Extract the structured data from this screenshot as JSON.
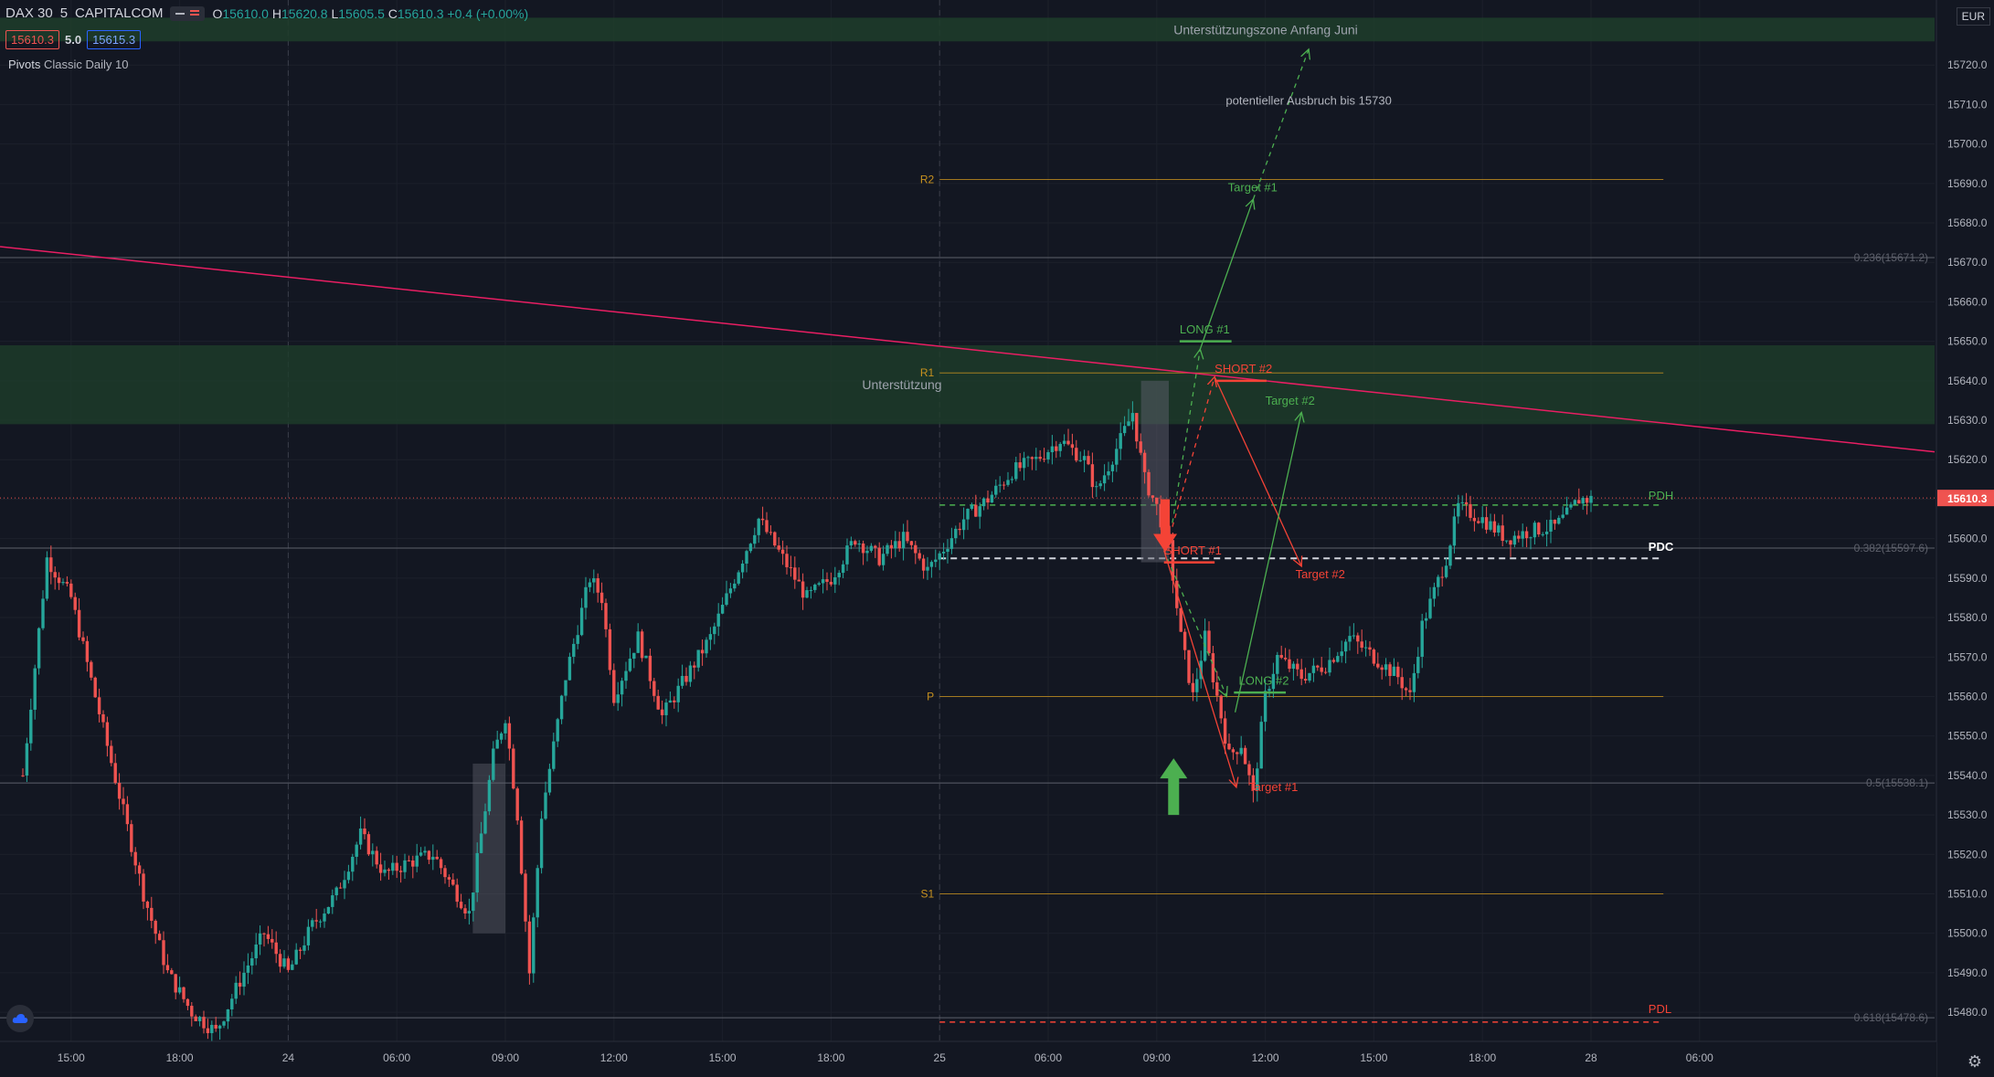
{
  "legend": {
    "symbol": "DAX 30",
    "interval": "5",
    "exchange": "CAPITALCOM",
    "o_label": "O",
    "o": "15610.0",
    "h_label": "H",
    "h": "15620.8",
    "l_label": "L",
    "l": "15605.5",
    "c_label": "C",
    "c": "15610.3",
    "change": "+0.4 (+0.00%)"
  },
  "tags": {
    "bid": "15610.3",
    "spread": "5.0",
    "ask": "15615.3"
  },
  "indicator": {
    "name": "Pivots",
    "params": "Classic Daily 10"
  },
  "currency": "EUR",
  "colors": {
    "bg": "#131722",
    "up": "#26a69a",
    "down": "#ef5350",
    "green": "#4caf50",
    "red": "#f44336",
    "orange": "#c7911f",
    "zone": "#1e3d2a",
    "trend": "#e91e63"
  },
  "icons": {
    "logo": "tradingview-cloud-icon",
    "settings": "gear-icon"
  },
  "chart_data": {
    "type": "candlestick",
    "ylim": [
      15474,
      15730
    ],
    "y_ticks": [
      "15720.0",
      "15710.0",
      "15700.0",
      "15690.0",
      "15680.0",
      "15670.0",
      "15660.0",
      "15650.0",
      "15640.0",
      "15630.0",
      "15620.0",
      "15610.0",
      "15600.0",
      "15590.0",
      "15580.0",
      "15570.0",
      "15560.0",
      "15550.0",
      "15540.0",
      "15530.0",
      "15520.0",
      "15510.0",
      "15500.0",
      "15490.0",
      "15480.0"
    ],
    "x_ticks": [
      {
        "label": "15:00",
        "slot": 4
      },
      {
        "label": "18:00",
        "slot": 13
      },
      {
        "label": "24",
        "slot": 22
      },
      {
        "label": "06:00",
        "slot": 31
      },
      {
        "label": "09:00",
        "slot": 40
      },
      {
        "label": "12:00",
        "slot": 49
      },
      {
        "label": "15:00",
        "slot": 58
      },
      {
        "label": "18:00",
        "slot": 67
      },
      {
        "label": "25",
        "slot": 76
      },
      {
        "label": "06:00",
        "slot": 85
      },
      {
        "label": "09:00",
        "slot": 94
      },
      {
        "label": "12:00",
        "slot": 103
      },
      {
        "label": "15:00",
        "slot": 112
      },
      {
        "label": "18:00",
        "slot": 121
      },
      {
        "label": "28",
        "slot": 130
      },
      {
        "label": "06:00",
        "slot": 139
      }
    ],
    "current_price": "15610.3",
    "pivots": [
      {
        "name": "R2",
        "value": 15691
      },
      {
        "name": "R1",
        "value": 15642
      },
      {
        "name": "P",
        "value": 15560
      },
      {
        "name": "S1",
        "value": 15510
      }
    ],
    "fib": [
      {
        "label": "0.236(15671.2)",
        "value": 15671.2
      },
      {
        "label": "0.382(15597.6)",
        "value": 15597.6
      },
      {
        "label": "0.5(15538.1)",
        "value": 15538.1
      },
      {
        "label": "0.618(15478.6)",
        "value": 15478.6
      }
    ],
    "levels": [
      {
        "label": "PDH",
        "value": 15608.5
      },
      {
        "label": "PDC",
        "value": 15595
      },
      {
        "label": "PDL",
        "value": 15477.5
      }
    ],
    "zones": [
      {
        "label": "Unterstützungszone Anfang Juni",
        "from": 15726,
        "to": 15732
      },
      {
        "label": "Unterstützung",
        "from": 15629,
        "to": 15649
      }
    ],
    "annotations": [
      {
        "text": "potentieller Ausbruch bis 15730",
        "color": "#b2b5be"
      },
      {
        "text": "Target #1",
        "color": "#4caf50"
      },
      {
        "text": "LONG #1",
        "color": "#4caf50"
      },
      {
        "text": "SHORT #2",
        "color": "#f44336"
      },
      {
        "text": "Target #2",
        "color": "#4caf50"
      },
      {
        "text": "SHORT #1",
        "color": "#f44336"
      },
      {
        "text": "Target #2",
        "color": "#f44336"
      },
      {
        "text": "LONG #2",
        "color": "#4caf50"
      },
      {
        "text": "Target #1",
        "color": "#f44336"
      }
    ],
    "anchors": [
      {
        "slot": 0,
        "price": 15540
      },
      {
        "slot": 2,
        "price": 15595
      },
      {
        "slot": 4,
        "price": 15585
      },
      {
        "slot": 6,
        "price": 15560
      },
      {
        "slot": 8,
        "price": 15535
      },
      {
        "slot": 10,
        "price": 15510
      },
      {
        "slot": 12,
        "price": 15490
      },
      {
        "slot": 14,
        "price": 15480
      },
      {
        "slot": 16,
        "price": 15475
      },
      {
        "slot": 18,
        "price": 15488
      },
      {
        "slot": 20,
        "price": 15500
      },
      {
        "slot": 22,
        "price": 15490
      },
      {
        "slot": 24,
        "price": 15502
      },
      {
        "slot": 26,
        "price": 15510
      },
      {
        "slot": 28,
        "price": 15525
      },
      {
        "slot": 30,
        "price": 15515
      },
      {
        "slot": 32,
        "price": 15518
      },
      {
        "slot": 34,
        "price": 15520
      },
      {
        "slot": 36,
        "price": 15510
      },
      {
        "slot": 37,
        "price": 15505
      },
      {
        "slot": 39,
        "price": 15545
      },
      {
        "slot": 40,
        "price": 15555
      },
      {
        "slot": 41,
        "price": 15530
      },
      {
        "slot": 42,
        "price": 15490
      },
      {
        "slot": 43,
        "price": 15530
      },
      {
        "slot": 45,
        "price": 15565
      },
      {
        "slot": 47,
        "price": 15590
      },
      {
        "slot": 48,
        "price": 15585
      },
      {
        "slot": 49,
        "price": 15560
      },
      {
        "slot": 51,
        "price": 15575
      },
      {
        "slot": 53,
        "price": 15555
      },
      {
        "slot": 55,
        "price": 15565
      },
      {
        "slot": 57,
        "price": 15575
      },
      {
        "slot": 59,
        "price": 15590
      },
      {
        "slot": 61,
        "price": 15605
      },
      {
        "slot": 63,
        "price": 15595
      },
      {
        "slot": 65,
        "price": 15585
      },
      {
        "slot": 67,
        "price": 15590
      },
      {
        "slot": 69,
        "price": 15600
      },
      {
        "slot": 71,
        "price": 15595
      },
      {
        "slot": 73,
        "price": 15600
      },
      {
        "slot": 75,
        "price": 15592
      },
      {
        "slot": 76,
        "price": 15596
      },
      {
        "slot": 78,
        "price": 15605
      },
      {
        "slot": 80,
        "price": 15610
      },
      {
        "slot": 82,
        "price": 15617
      },
      {
        "slot": 84,
        "price": 15620
      },
      {
        "slot": 86,
        "price": 15625
      },
      {
        "slot": 88,
        "price": 15620
      },
      {
        "slot": 89,
        "price": 15612
      },
      {
        "slot": 91,
        "price": 15625
      },
      {
        "slot": 92,
        "price": 15632
      },
      {
        "slot": 93,
        "price": 15615
      },
      {
        "slot": 94,
        "price": 15608
      },
      {
        "slot": 95,
        "price": 15598
      },
      {
        "slot": 96,
        "price": 15575
      },
      {
        "slot": 97,
        "price": 15560
      },
      {
        "slot": 98,
        "price": 15575
      },
      {
        "slot": 99,
        "price": 15560
      },
      {
        "slot": 100,
        "price": 15545
      },
      {
        "slot": 101,
        "price": 15548
      },
      {
        "slot": 102,
        "price": 15535
      },
      {
        "slot": 103,
        "price": 15560
      },
      {
        "slot": 104,
        "price": 15570
      },
      {
        "slot": 106,
        "price": 15565
      },
      {
        "slot": 108,
        "price": 15568
      },
      {
        "slot": 110,
        "price": 15575
      },
      {
        "slot": 112,
        "price": 15570
      },
      {
        "slot": 114,
        "price": 15565
      },
      {
        "slot": 115,
        "price": 15560
      },
      {
        "slot": 116,
        "price": 15578
      },
      {
        "slot": 118,
        "price": 15595
      },
      {
        "slot": 119,
        "price": 15608
      },
      {
        "slot": 121,
        "price": 15605
      },
      {
        "slot": 123,
        "price": 15600
      },
      {
        "slot": 125,
        "price": 15602
      },
      {
        "slot": 127,
        "price": 15603
      },
      {
        "slot": 128,
        "price": 15606
      },
      {
        "slot": 129,
        "price": 15610
      }
    ]
  }
}
